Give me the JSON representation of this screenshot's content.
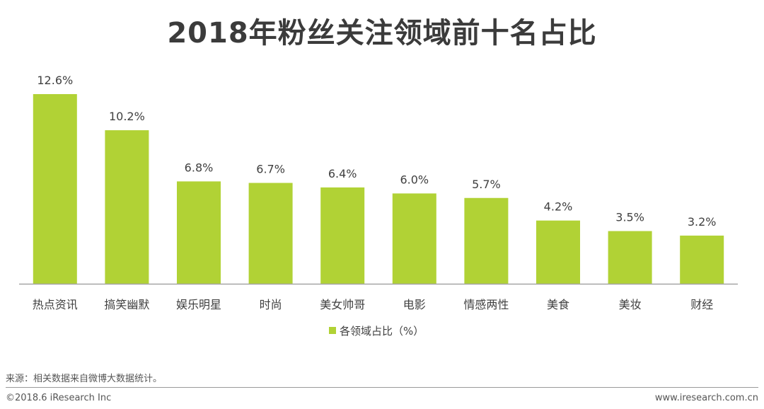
{
  "title": "2018年粉丝关注领域前十名占比",
  "chart_data": {
    "type": "bar",
    "categories": [
      "热点资讯",
      "搞笑幽默",
      "娱乐明星",
      "时尚",
      "美女帅哥",
      "电影",
      "情感两性",
      "美食",
      "美妆",
      "财经"
    ],
    "series": [
      {
        "name": "各领域占比（%）",
        "values": [
          12.6,
          10.2,
          6.8,
          6.7,
          6.4,
          6.0,
          5.7,
          4.2,
          3.5,
          3.2
        ],
        "labels": [
          "12.6%",
          "10.2%",
          "6.8%",
          "6.7%",
          "6.4%",
          "6.0%",
          "5.7%",
          "4.2%",
          "3.5%",
          "3.2%"
        ]
      }
    ],
    "legend_position": "bottom",
    "grid": false,
    "ylim": [
      0,
      12.6
    ],
    "bar_color": "#b1d235",
    "axis_color": "#a6a6a6"
  },
  "footer": {
    "source": "来源：相关数据来自微博大数据统计。",
    "copyright": "©2018.6 iResearch Inc",
    "website": "www.iresearch.com.cn"
  }
}
